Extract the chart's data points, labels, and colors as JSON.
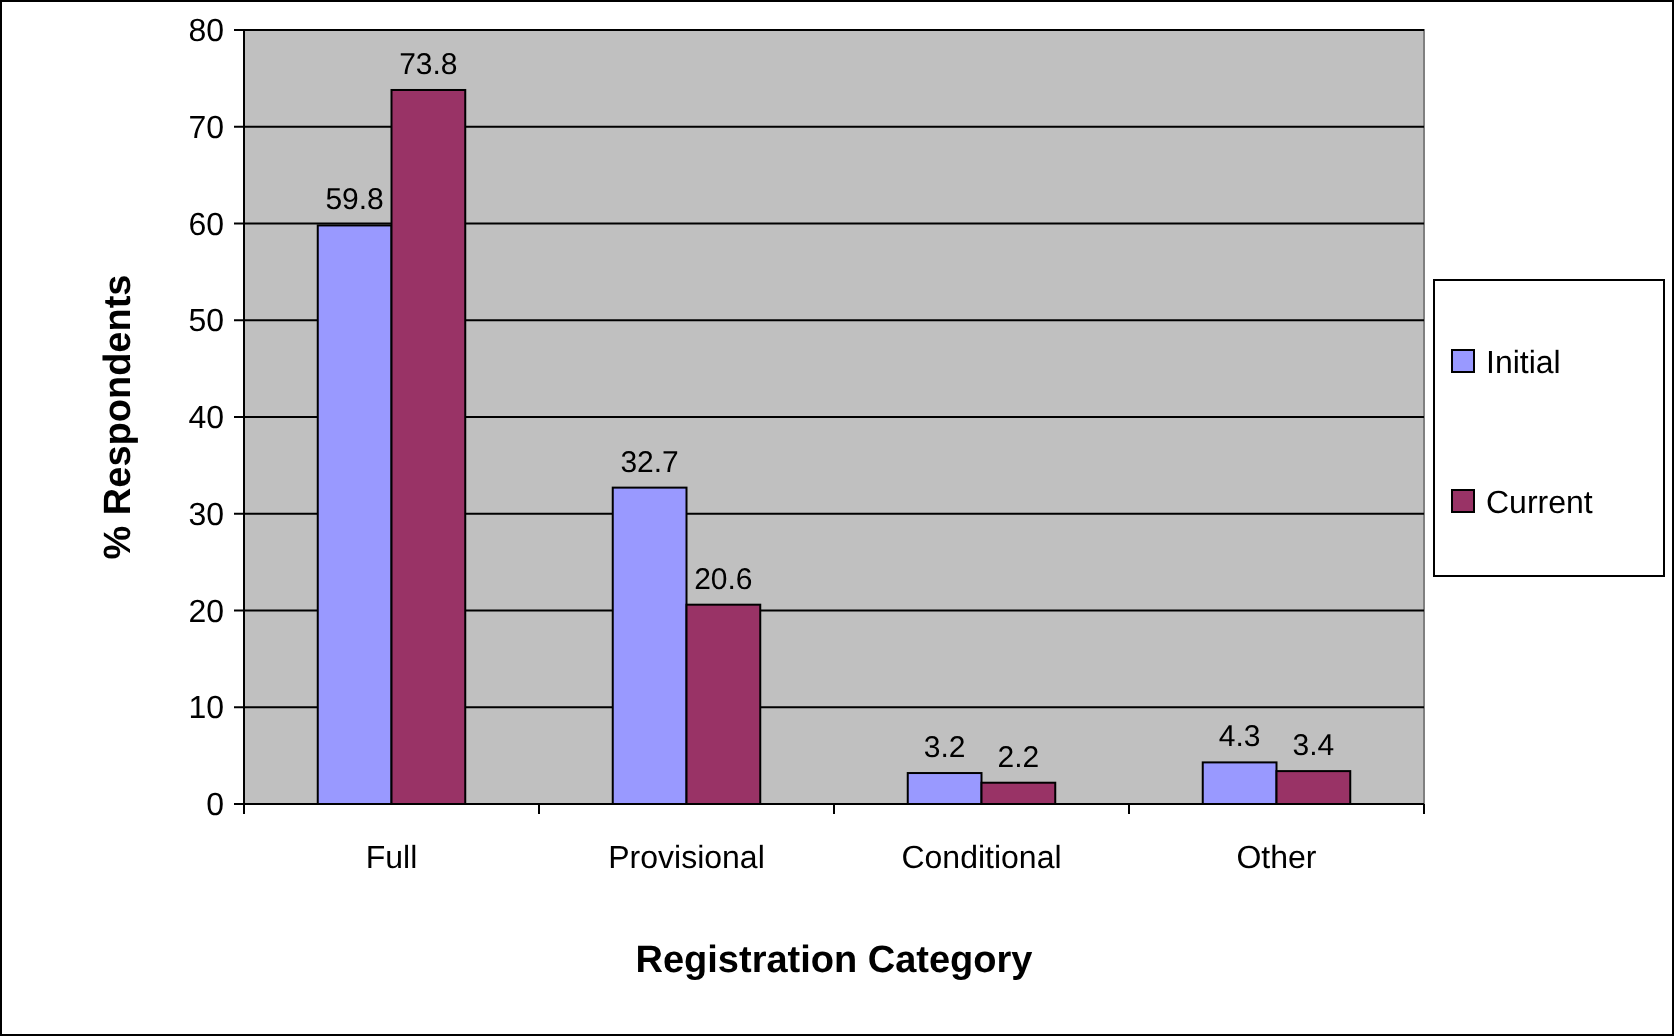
{
  "chart_data": {
    "type": "bar",
    "xlabel": "Registration Category",
    "ylabel": "% Respondents",
    "categories": [
      "Full",
      "Provisional",
      "Conditional",
      "Other"
    ],
    "series": [
      {
        "name": "Initial",
        "color": "#9999ff",
        "values": [
          59.8,
          32.7,
          3.2,
          4.3
        ]
      },
      {
        "name": "Current",
        "color": "#993366",
        "values": [
          73.8,
          20.6,
          2.2,
          3.4
        ]
      }
    ],
    "ylim": [
      0,
      80
    ],
    "yticks": [
      0,
      10,
      20,
      30,
      40,
      50,
      60,
      70,
      80
    ],
    "grid": "y",
    "legend": "right",
    "data_labels": true
  }
}
